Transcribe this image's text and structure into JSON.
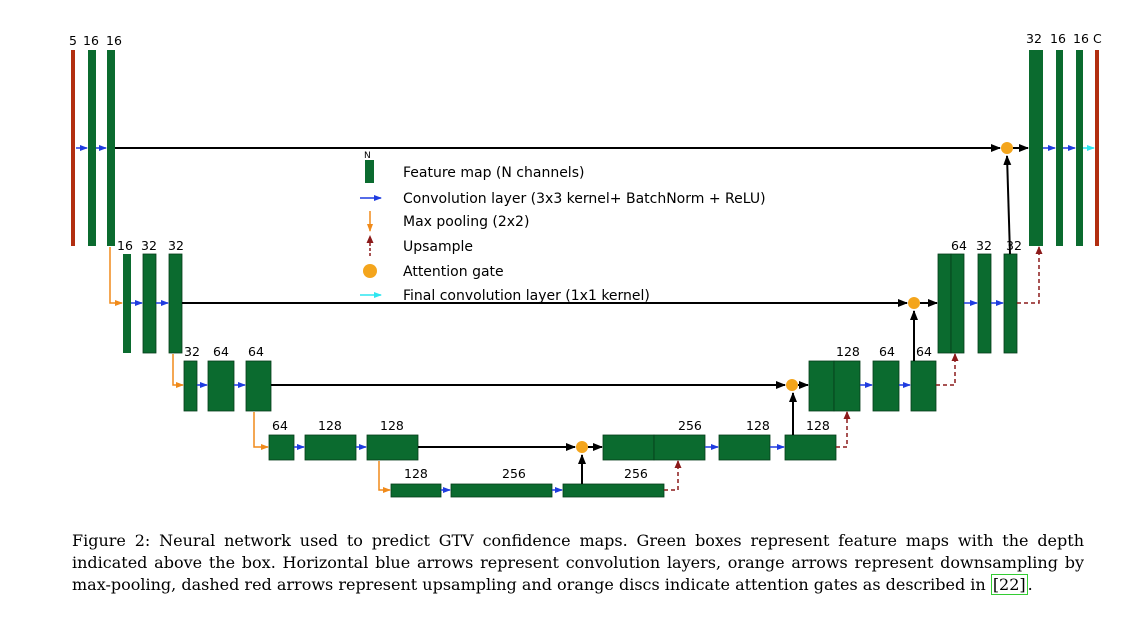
{
  "diagram": {
    "channel_labels": [
      "5",
      "16",
      "16",
      "16",
      "32",
      "32",
      "32",
      "64",
      "64",
      "64",
      "128",
      "128",
      "128",
      "256",
      "256",
      "256",
      "128",
      "128",
      "128",
      "64",
      "64",
      "64",
      "32",
      "32",
      "32",
      "16",
      "16",
      "C"
    ],
    "legend": {
      "feature_map_glyph": "N",
      "feature_map": "Feature map (N channels)",
      "convolution": "Convolution layer (3x3 kernel+ BatchNorm + ReLU)",
      "max_pooling": "Max pooling (2x2)",
      "upsample": "Upsample",
      "attention": "Attention gate",
      "final_conv": "Final convolution layer (1x1 kernel)"
    },
    "colors": {
      "feature_map": "#0b6b2f",
      "input_output": "#b22e10",
      "convolution": "#1f3ce0",
      "max_pooling": "#f08a1a",
      "upsample": "#8b1a1a",
      "attention": "#f4a51c",
      "final_conv": "#2ee6f0",
      "skip": "#000000"
    }
  },
  "caption": {
    "text": "Figure 2: Neural network used to predict GTV confidence maps. Green boxes represent feature maps with the depth indicated above the box. Horizontal blue arrows represent convolution layers, orange arrows represent downsampling by max-pooling, dashed red arrows represent upsampling and orange discs indicate attention gates as described in ",
    "ref": "[22]",
    "end": "."
  }
}
